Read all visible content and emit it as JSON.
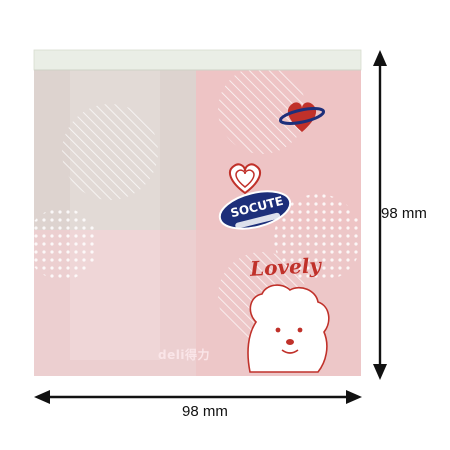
{
  "dimensions": {
    "width_label": "98 mm",
    "height_label": "98 mm"
  },
  "product": {
    "brand_logo": "deli得力",
    "sticker_title": "Lovely",
    "badge_text": "SOCUTE"
  },
  "colors": {
    "pad_pink": "#ecc6c7",
    "pad_light": "#dcd3cf",
    "top_strip": "#eaeee6",
    "accent_red": "#c0312a",
    "badge_navy": "#1d2f7a",
    "arrow": "#111111"
  },
  "icons": [
    "arrow-vertical-icon",
    "arrow-horizontal-icon",
    "heart-planet-icon",
    "heart-icon",
    "dog-icon"
  ]
}
